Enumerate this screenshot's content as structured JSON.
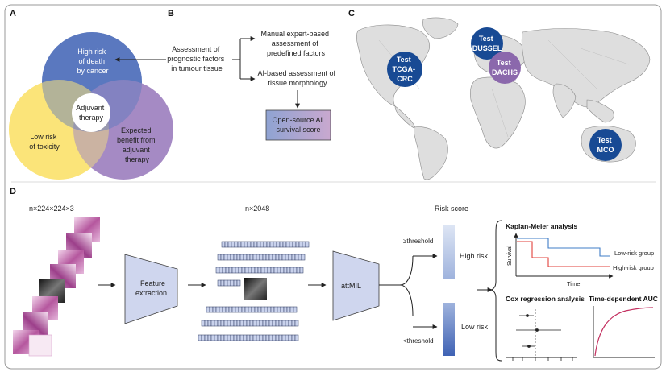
{
  "panels": {
    "a": "A",
    "b": "B",
    "c": "C",
    "d": "D"
  },
  "venn": {
    "cancer_death": [
      "High risk",
      "of death",
      "by cancer"
    ],
    "toxicity": [
      "Low risk",
      "of toxicity"
    ],
    "benefit": [
      "Expected",
      "benefit from",
      "adjuvant",
      "therapy"
    ],
    "center": [
      "Adjuvant",
      "therapy"
    ]
  },
  "flow_b": {
    "assessment": [
      "Assessment of",
      "prognostic factors",
      "in tumour tissue"
    ],
    "manual": [
      "Manual expert-based",
      "assessment of",
      "predefined factors"
    ],
    "ai": [
      "AI-based assessment of",
      "tissue morphology"
    ],
    "score": [
      "Open-source AI",
      "survival score"
    ]
  },
  "map": {
    "tcga": [
      "Test",
      "TCGA-",
      "CRC"
    ],
    "dussel": [
      "Test",
      "DUSSEL"
    ],
    "dachs": [
      "Test",
      "DACHS"
    ],
    "mco": [
      "Test",
      "MCO"
    ]
  },
  "pipeline": {
    "input_dims": "n×224×224×3",
    "feature_dims": "n×2048",
    "feature_extraction": [
      "Feature",
      "extraction"
    ],
    "attmil": "attMIL",
    "risk_score": "Risk score",
    "above": "≥threshold",
    "below": "<threshold",
    "high_risk": "High risk",
    "low_risk": "Low risk"
  },
  "km": {
    "title": "Kaplan-Meier analysis",
    "ylabel": "Survival",
    "xlabel": "Time",
    "low_group": "Low-risk group",
    "high_group": "High-risk group"
  },
  "cox": {
    "title": "Cox regression analysis"
  },
  "auc": {
    "title": "Time-dependent AUC"
  },
  "colors": {
    "venn_blue": "#5a78bf",
    "venn_yellow": "#fbe479",
    "venn_purple": "#a58ac4",
    "badge_blue": "#184a94",
    "badge_purple": "#8b68ac",
    "box_fill": "#cfd6ee",
    "km_low": "#3f7cc7",
    "km_high": "#e2403b",
    "auc_curve": "#c33060"
  }
}
